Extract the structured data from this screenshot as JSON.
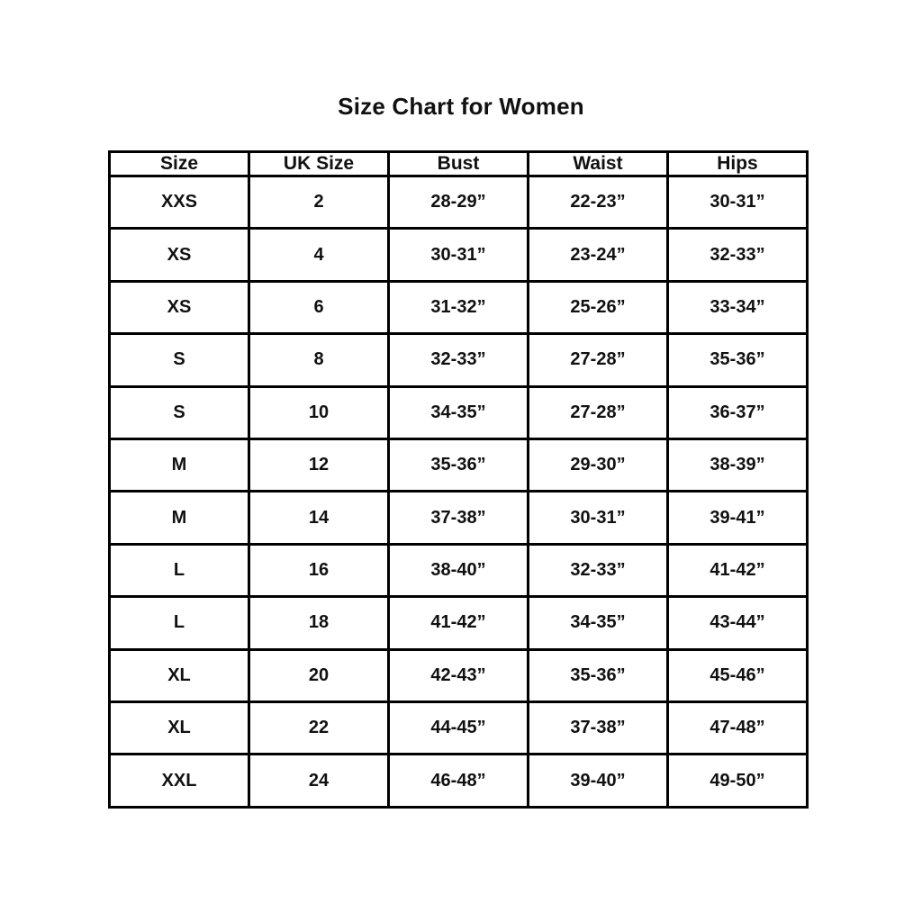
{
  "title": "Size Chart for Women",
  "colors": {
    "background": "#ffffff",
    "text": "#111111",
    "border": "#000000"
  },
  "chart_data": {
    "type": "table",
    "title": "Size Chart for Women",
    "columns": [
      "Size",
      "UK Size",
      "Bust",
      "Waist",
      "Hips"
    ],
    "rows": [
      [
        "XXS",
        "2",
        "28-29”",
        "22-23”",
        "30-31”"
      ],
      [
        "XS",
        "4",
        "30-31”",
        "23-24”",
        "32-33”"
      ],
      [
        "XS",
        "6",
        "31-32”",
        "25-26”",
        "33-34”"
      ],
      [
        "S",
        "8",
        "32-33”",
        "27-28”",
        "35-36”"
      ],
      [
        "S",
        "10",
        "34-35”",
        "27-28”",
        "36-37”"
      ],
      [
        "M",
        "12",
        "35-36”",
        "29-30”",
        "38-39”"
      ],
      [
        "M",
        "14",
        "37-38”",
        "30-31”",
        "39-41”"
      ],
      [
        "L",
        "16",
        "38-40”",
        "32-33”",
        "41-42”"
      ],
      [
        "L",
        "18",
        "41-42”",
        "34-35”",
        "43-44”"
      ],
      [
        "XL",
        "20",
        "42-43”",
        "35-36”",
        "45-46”"
      ],
      [
        "XL",
        "22",
        "44-45”",
        "37-38”",
        "47-48”"
      ],
      [
        "XXL",
        "24",
        "46-48”",
        "39-40”",
        "49-50”"
      ]
    ]
  }
}
